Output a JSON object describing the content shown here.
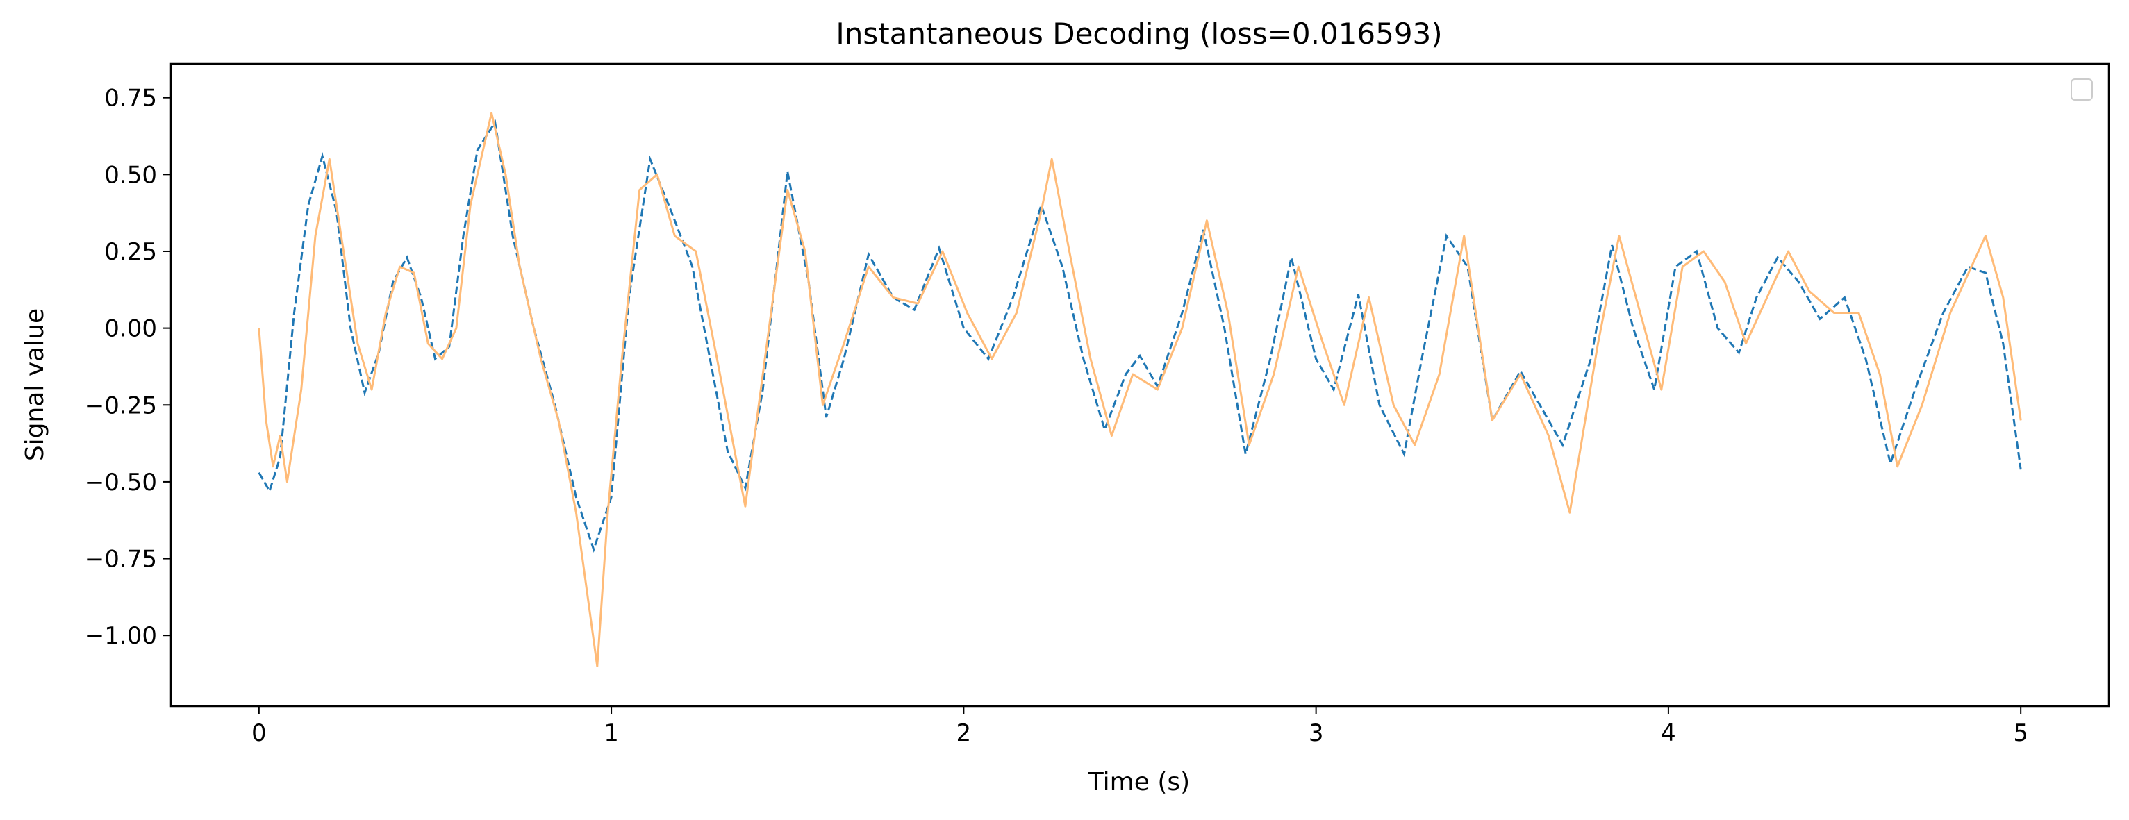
{
  "chart_data": {
    "type": "line",
    "title": "Instantaneous Decoding (loss=0.016593)",
    "xlabel": "Time (s)",
    "ylabel": "Signal value",
    "xlim": [
      -0.25,
      5.25
    ],
    "ylim": [
      -1.23,
      0.86
    ],
    "xticks": [
      {
        "value": 0,
        "label": "0"
      },
      {
        "value": 1,
        "label": "1"
      },
      {
        "value": 2,
        "label": "2"
      },
      {
        "value": 3,
        "label": "3"
      },
      {
        "value": 4,
        "label": "4"
      },
      {
        "value": 5,
        "label": "5"
      }
    ],
    "yticks": [
      {
        "value": 0.75,
        "label": "0.75"
      },
      {
        "value": 0.5,
        "label": "0.50"
      },
      {
        "value": 0.25,
        "label": "0.25"
      },
      {
        "value": 0.0,
        "label": "0.00"
      },
      {
        "value": -0.25,
        "label": "−0.25"
      },
      {
        "value": -0.5,
        "label": "−0.50"
      },
      {
        "value": -0.75,
        "label": "−0.75"
      },
      {
        "value": -1.0,
        "label": "−1.00"
      }
    ],
    "grid": false,
    "legend": "top-right",
    "series": [
      {
        "style": "dashed",
        "color": "#1f77b4",
        "x": [
          0.0,
          0.03,
          0.06,
          0.1,
          0.14,
          0.18,
          0.22,
          0.26,
          0.3,
          0.34,
          0.38,
          0.42,
          0.46,
          0.5,
          0.54,
          0.58,
          0.62,
          0.67,
          0.72,
          0.78,
          0.84,
          0.9,
          0.95,
          1.0,
          1.05,
          1.11,
          1.17,
          1.23,
          1.28,
          1.33,
          1.38,
          1.43,
          1.5,
          1.56,
          1.61,
          1.66,
          1.73,
          1.8,
          1.86,
          1.93,
          2.0,
          2.07,
          2.14,
          2.22,
          2.28,
          2.34,
          2.4,
          2.46,
          2.5,
          2.55,
          2.62,
          2.68,
          2.74,
          2.8,
          2.87,
          2.93,
          3.0,
          3.05,
          3.12,
          3.18,
          3.25,
          3.3,
          3.37,
          3.43,
          3.5,
          3.58,
          3.65,
          3.7,
          3.78,
          3.84,
          3.9,
          3.96,
          4.02,
          4.08,
          4.14,
          4.2,
          4.25,
          4.31,
          4.37,
          4.43,
          4.5,
          4.56,
          4.63,
          4.7,
          4.78,
          4.85,
          4.9,
          4.95,
          5.0
        ],
        "y": [
          -0.47,
          -0.53,
          -0.42,
          0.05,
          0.4,
          0.56,
          0.38,
          0.0,
          -0.21,
          -0.08,
          0.15,
          0.23,
          0.1,
          -0.1,
          -0.06,
          0.3,
          0.58,
          0.67,
          0.3,
          0.0,
          -0.25,
          -0.55,
          -0.72,
          -0.55,
          0.1,
          0.55,
          0.38,
          0.2,
          -0.1,
          -0.4,
          -0.52,
          -0.2,
          0.51,
          0.15,
          -0.29,
          -0.1,
          0.24,
          0.1,
          0.06,
          0.26,
          0.0,
          -0.1,
          0.1,
          0.4,
          0.2,
          -0.1,
          -0.33,
          -0.15,
          -0.09,
          -0.19,
          0.05,
          0.32,
          0.0,
          -0.41,
          -0.1,
          0.23,
          -0.1,
          -0.2,
          0.11,
          -0.25,
          -0.41,
          -0.1,
          0.3,
          0.2,
          -0.3,
          -0.14,
          -0.28,
          -0.38,
          -0.1,
          0.27,
          0.0,
          -0.2,
          0.2,
          0.25,
          0.0,
          -0.08,
          0.1,
          0.23,
          0.15,
          0.03,
          0.1,
          -0.1,
          -0.44,
          -0.2,
          0.05,
          0.2,
          0.18,
          -0.05,
          -0.46
        ]
      },
      {
        "style": "solid",
        "color": "#ffbb78",
        "x": [
          0.0,
          0.02,
          0.04,
          0.06,
          0.08,
          0.12,
          0.16,
          0.2,
          0.24,
          0.28,
          0.32,
          0.36,
          0.4,
          0.44,
          0.48,
          0.52,
          0.56,
          0.6,
          0.66,
          0.7,
          0.74,
          0.8,
          0.85,
          0.9,
          0.93,
          0.96,
          0.99,
          1.03,
          1.08,
          1.13,
          1.18,
          1.24,
          1.3,
          1.35,
          1.38,
          1.43,
          1.5,
          1.55,
          1.6,
          1.66,
          1.73,
          1.8,
          1.87,
          1.94,
          2.01,
          2.08,
          2.15,
          2.22,
          2.25,
          2.3,
          2.36,
          2.42,
          2.48,
          2.55,
          2.62,
          2.69,
          2.75,
          2.81,
          2.88,
          2.95,
          3.02,
          3.08,
          3.15,
          3.22,
          3.28,
          3.35,
          3.42,
          3.5,
          3.58,
          3.66,
          3.72,
          3.8,
          3.86,
          3.92,
          3.98,
          4.04,
          4.1,
          4.16,
          4.22,
          4.28,
          4.34,
          4.4,
          4.47,
          4.54,
          4.6,
          4.65,
          4.72,
          4.8,
          4.86,
          4.9,
          4.95,
          5.0
        ],
        "y": [
          0.0,
          -0.3,
          -0.45,
          -0.35,
          -0.5,
          -0.2,
          0.3,
          0.55,
          0.25,
          -0.05,
          -0.2,
          0.05,
          0.2,
          0.18,
          -0.05,
          -0.1,
          0.0,
          0.4,
          0.7,
          0.5,
          0.2,
          -0.1,
          -0.3,
          -0.6,
          -0.85,
          -1.1,
          -0.6,
          -0.1,
          0.45,
          0.5,
          0.3,
          0.25,
          -0.1,
          -0.4,
          -0.58,
          -0.15,
          0.45,
          0.25,
          -0.25,
          -0.05,
          0.2,
          0.1,
          0.08,
          0.25,
          0.05,
          -0.1,
          0.05,
          0.38,
          0.55,
          0.25,
          -0.1,
          -0.35,
          -0.15,
          -0.2,
          0.0,
          0.35,
          0.05,
          -0.38,
          -0.15,
          0.2,
          -0.05,
          -0.25,
          0.1,
          -0.25,
          -0.38,
          -0.15,
          0.3,
          -0.3,
          -0.15,
          -0.35,
          -0.6,
          -0.05,
          0.3,
          0.05,
          -0.2,
          0.2,
          0.25,
          0.15,
          -0.05,
          0.1,
          0.25,
          0.12,
          0.05,
          0.05,
          -0.15,
          -0.45,
          -0.25,
          0.05,
          0.2,
          0.3,
          0.1,
          -0.3
        ]
      }
    ]
  }
}
